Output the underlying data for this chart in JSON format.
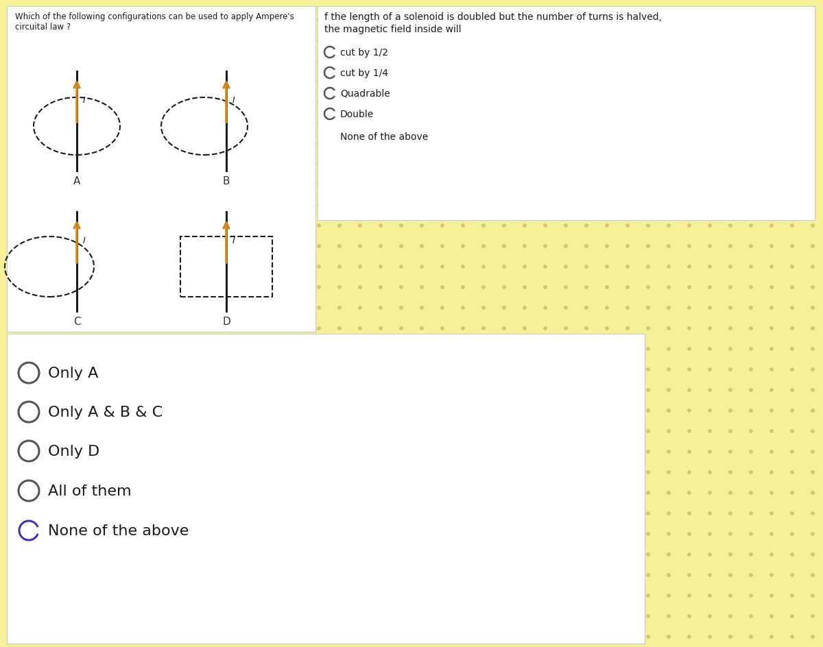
{
  "bg_color": "#f5ef9a",
  "dot_color": "#d4c96a",
  "white_color": "#ffffff",
  "q1_title_line1": "Which of the following configurations can be used to apply Ampere's",
  "q1_title_line2": "circuital law ?",
  "q2_title_line1": "f the length of a solenoid is doubled but the number of turns is halved,",
  "q2_title_line2": "the magnetic field inside will",
  "q2_options": [
    "cut by 1/2",
    "cut by 1/4",
    "Quadrable",
    "Double"
  ],
  "q2_none": "None of the above",
  "diagram_labels": [
    "A",
    "B",
    "C",
    "D"
  ],
  "q1_answers": [
    "Only A",
    "Only A & B & C",
    "Only D",
    "All of them",
    "None of the above"
  ],
  "arrow_color": "#cc8822",
  "line_color": "#1a1a1a",
  "radio_color": "#555555",
  "radio_last_color": "#4433aa",
  "text_color": "#1a1a1a",
  "label_color": "#333333"
}
